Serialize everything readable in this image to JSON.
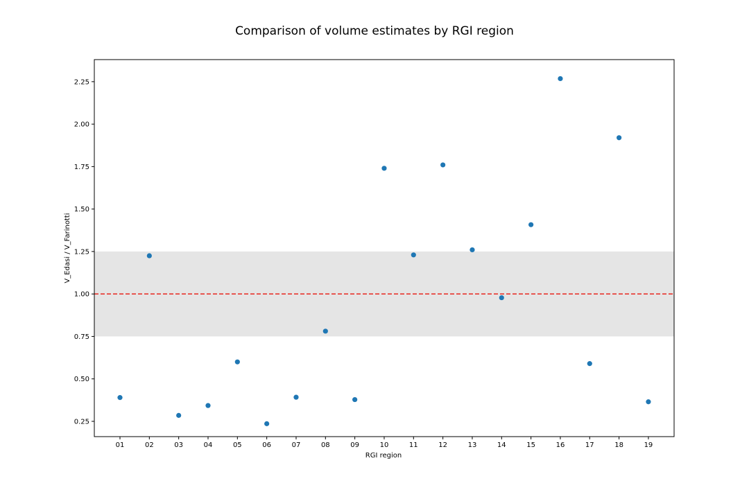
{
  "chart_data": {
    "type": "scatter",
    "title": "Comparison of volume estimates by RGI region",
    "xlabel": "RGI region",
    "ylabel": "V_Edasi / V_Farinotti",
    "categories": [
      "01",
      "02",
      "03",
      "04",
      "05",
      "06",
      "07",
      "08",
      "09",
      "10",
      "11",
      "12",
      "13",
      "14",
      "15",
      "16",
      "17",
      "18",
      "19"
    ],
    "values": [
      0.39,
      1.225,
      0.285,
      0.343,
      0.6,
      0.236,
      0.392,
      0.781,
      0.378,
      1.74,
      1.23,
      1.76,
      1.26,
      0.978,
      1.408,
      2.268,
      0.59,
      1.92,
      0.365
    ],
    "ylim": [
      0.16,
      2.38
    ],
    "yticks": [
      0.25,
      0.5,
      0.75,
      1.0,
      1.25,
      1.5,
      1.75,
      2.0,
      2.25
    ],
    "ytick_labels": [
      "0.25",
      "0.50",
      "0.75",
      "1.00",
      "1.25",
      "1.50",
      "1.75",
      "2.00",
      "2.25"
    ],
    "reference_line": {
      "y": 1.0,
      "style": "dashed",
      "color": "#e8261e"
    },
    "shaded_band": {
      "y_from": 0.75,
      "y_to": 1.25,
      "color": "#e5e5e5"
    },
    "marker_color": "#1f77b4",
    "grid": false,
    "legend": "none"
  }
}
